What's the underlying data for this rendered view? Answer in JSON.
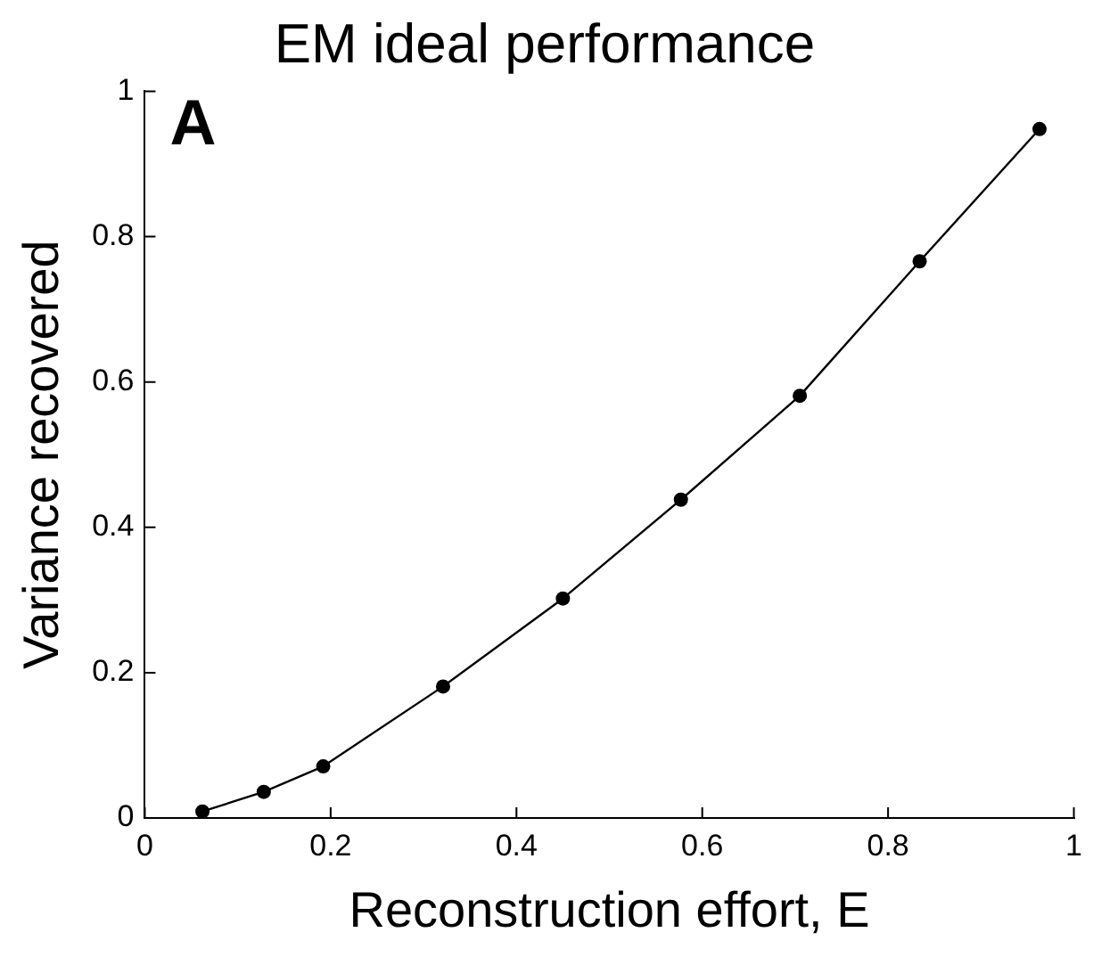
{
  "chart_data": {
    "type": "line",
    "title": "EM ideal performance",
    "xlabel": "Reconstruction effort, E",
    "ylabel": "Variance recovered",
    "annotations": [
      "A"
    ],
    "x": [
      0.062,
      0.128,
      0.192,
      0.321,
      0.45,
      0.577,
      0.705,
      0.834,
      0.963
    ],
    "series": [
      {
        "color": "#000000",
        "values": [
          0.009,
          0.036,
          0.071,
          0.181,
          0.302,
          0.438,
          0.581,
          0.766,
          0.948
        ]
      }
    ],
    "xlim": [
      0,
      1
    ],
    "xticks": [
      0,
      0.2,
      0.4,
      0.6,
      0.8,
      1
    ],
    "ylim": [
      0,
      1
    ],
    "yticks": [
      0,
      0.2,
      0.4,
      0.6,
      0.8,
      1
    ],
    "grid": false,
    "legend": false,
    "marker": "circle",
    "line_style": "solid"
  }
}
